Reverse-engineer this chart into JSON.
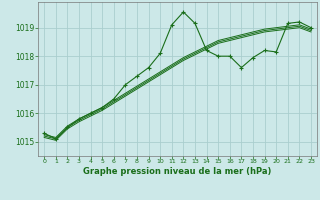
{
  "title": "Graphe pression niveau de la mer (hPa)",
  "background_color": "#cce8e8",
  "grid_color": "#aacece",
  "line_color": "#1a6e1a",
  "x_ticks": [
    0,
    1,
    2,
    3,
    4,
    5,
    6,
    7,
    8,
    9,
    10,
    11,
    12,
    13,
    14,
    15,
    16,
    17,
    18,
    19,
    20,
    21,
    22,
    23
  ],
  "x_tick_labels": [
    "0",
    "1",
    "2",
    "3",
    "4",
    "5",
    "6",
    "7",
    "8",
    "9",
    "10",
    "11",
    "12",
    "13",
    "14",
    "15",
    "16",
    "17",
    "18",
    "19",
    "20",
    "21",
    "22",
    "23"
  ],
  "y_ticks": [
    1015,
    1016,
    1017,
    1018,
    1019
  ],
  "ylim": [
    1014.5,
    1019.9
  ],
  "xlim": [
    -0.5,
    23.5
  ],
  "main_series_x": [
    0,
    1,
    2,
    3,
    4,
    5,
    6,
    7,
    8,
    9,
    10,
    11,
    12,
    13,
    14,
    15,
    16,
    17,
    18,
    19,
    20,
    21,
    22,
    23
  ],
  "main_series_y": [
    1015.3,
    1015.1,
    1015.5,
    1015.8,
    1016.0,
    1016.2,
    1016.5,
    1017.0,
    1017.3,
    1017.6,
    1018.1,
    1019.1,
    1019.55,
    1019.15,
    1018.2,
    1018.0,
    1018.0,
    1017.6,
    1017.95,
    1018.2,
    1018.15,
    1019.15,
    1019.2,
    1019.0
  ],
  "smooth_series1_x": [
    0,
    1,
    2,
    3,
    4,
    5,
    6,
    7,
    8,
    9,
    10,
    11,
    12,
    13,
    14,
    15,
    16,
    17,
    18,
    19,
    20,
    21,
    22,
    23
  ],
  "smooth_series1_y": [
    1015.25,
    1015.15,
    1015.55,
    1015.8,
    1016.0,
    1016.2,
    1016.45,
    1016.7,
    1016.95,
    1017.2,
    1017.45,
    1017.7,
    1017.95,
    1018.15,
    1018.35,
    1018.55,
    1018.65,
    1018.75,
    1018.85,
    1018.95,
    1019.0,
    1019.05,
    1019.1,
    1018.95
  ],
  "smooth_series2_x": [
    0,
    1,
    2,
    3,
    4,
    5,
    6,
    7,
    8,
    9,
    10,
    11,
    12,
    13,
    14,
    15,
    16,
    17,
    18,
    19,
    20,
    21,
    22,
    23
  ],
  "smooth_series2_y": [
    1015.2,
    1015.1,
    1015.5,
    1015.75,
    1015.95,
    1016.15,
    1016.4,
    1016.65,
    1016.9,
    1017.15,
    1017.4,
    1017.65,
    1017.9,
    1018.1,
    1018.3,
    1018.5,
    1018.6,
    1018.7,
    1018.8,
    1018.9,
    1018.95,
    1019.0,
    1019.05,
    1018.9
  ],
  "smooth_series3_x": [
    0,
    1,
    2,
    3,
    4,
    5,
    6,
    7,
    8,
    9,
    10,
    11,
    12,
    13,
    14,
    15,
    16,
    17,
    18,
    19,
    20,
    21,
    22,
    23
  ],
  "smooth_series3_y": [
    1015.15,
    1015.05,
    1015.45,
    1015.7,
    1015.9,
    1016.1,
    1016.35,
    1016.6,
    1016.85,
    1017.1,
    1017.35,
    1017.6,
    1017.85,
    1018.05,
    1018.25,
    1018.45,
    1018.55,
    1018.65,
    1018.75,
    1018.85,
    1018.9,
    1018.95,
    1019.0,
    1018.85
  ]
}
